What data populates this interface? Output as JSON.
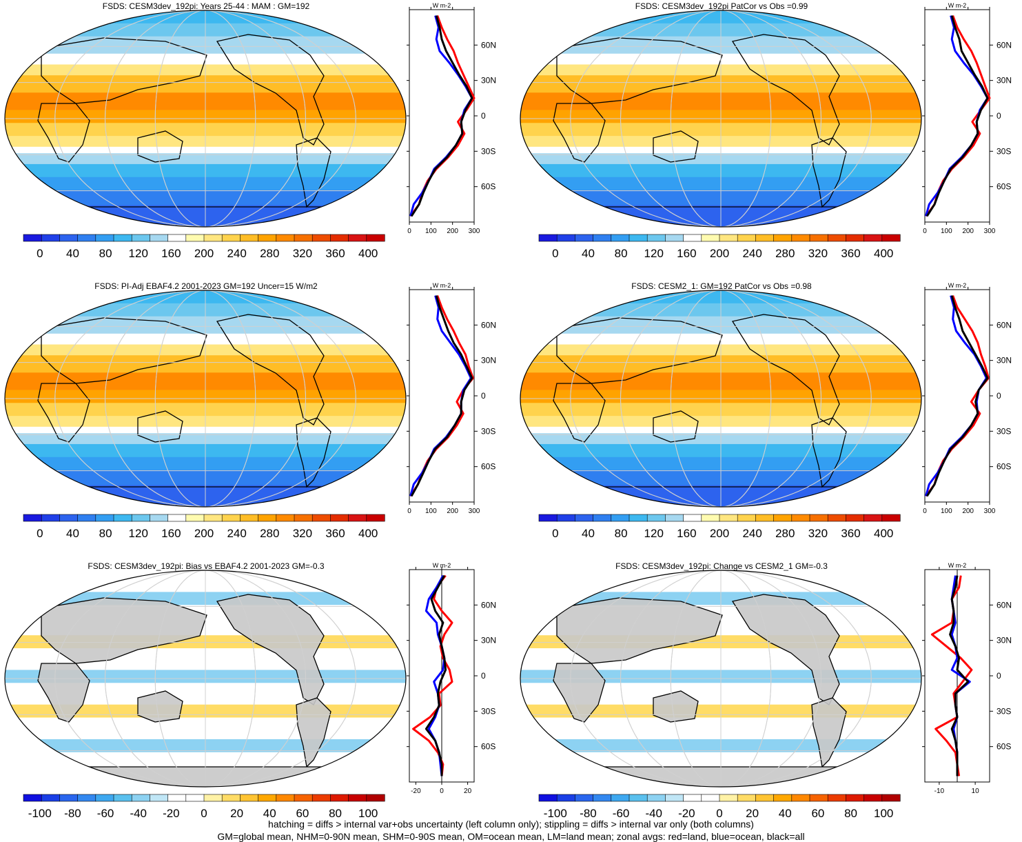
{
  "footer": {
    "line1": "hatching = diffs > internal var+obs uncertainty (left column only); stippling = diffs > internal var only (both columns)",
    "line2": "GM=global mean, NHM=0-90N mean, SHM=0-90S mean, OM=ocean mean, LM=land mean; zonal avgs: red=land, blue=ocean, black=all"
  },
  "colors": {
    "land": "#ff0000",
    "ocean": "#0000ff",
    "all": "#000000",
    "missing_land": "#c8c8c8",
    "abs_palette": [
      "#1a1adf",
      "#2040e8",
      "#2d63ee",
      "#2f7ff0",
      "#339ef2",
      "#3db8f0",
      "#6cc7ee",
      "#a6d8f0",
      "#ffffff",
      "#fffbb0",
      "#ffe680",
      "#ffd34d",
      "#ffbd26",
      "#ffa300",
      "#ff8a00",
      "#f77000",
      "#ee4c00",
      "#e42d00",
      "#d91313",
      "#c90000"
    ],
    "diff_palette": [
      "#1010e0",
      "#1a3fe6",
      "#2a66ee",
      "#3388f0",
      "#3ea8f0",
      "#5ac0ee",
      "#8dd2f2",
      "#c0e6f6",
      "#ffffff",
      "#ffffff",
      "#fff2a6",
      "#ffdc66",
      "#ffc433",
      "#ffa800",
      "#ff8800",
      "#f76300",
      "#ec3c00",
      "#de1a00",
      "#c80000",
      "#b00000"
    ]
  },
  "chart_data": [
    {
      "type": "heatmap",
      "panel": "top-left",
      "title": "FSDS: CESM3dev_192pi: Years 25-44 : MAM : GM=192",
      "colorbar_ticks": [
        "0",
        "40",
        "80",
        "120",
        "160",
        "200",
        "240",
        "280",
        "320",
        "360",
        "400"
      ],
      "colorbar_range": [
        -20,
        420
      ],
      "zonal": {
        "lat_ticks": [
          "60N",
          "30N",
          "0",
          "30S",
          "60S"
        ],
        "x_ticks": [
          "0",
          "100",
          "200",
          "300"
        ],
        "xlim": [
          0,
          300
        ],
        "unit": "W m-2",
        "lat": [
          85,
          75,
          65,
          55,
          45,
          35,
          25,
          15,
          5,
          -5,
          -15,
          -25,
          -35,
          -45,
          -55,
          -65,
          -75,
          -85
        ],
        "all": [
          125,
          140,
          150,
          170,
          200,
          230,
          265,
          290,
          260,
          240,
          245,
          215,
          175,
          120,
          90,
          65,
          45,
          10
        ],
        "land": [
          130,
          150,
          175,
          205,
          225,
          250,
          275,
          300,
          265,
          225,
          255,
          225,
          180,
          125,
          85,
          60,
          45,
          5
        ],
        "ocean": [
          120,
          135,
          125,
          140,
          185,
          225,
          260,
          290,
          255,
          240,
          245,
          215,
          170,
          115,
          90,
          60,
          20,
          5
        ]
      }
    },
    {
      "type": "heatmap",
      "panel": "top-right",
      "title": "FSDS: CESM3dev_192pi PatCor vs Obs =0.99",
      "colorbar_ticks": [
        "0",
        "40",
        "80",
        "120",
        "160",
        "200",
        "240",
        "280",
        "320",
        "360",
        "400"
      ],
      "colorbar_range": [
        -20,
        420
      ],
      "zonal": {
        "lat_ticks": [
          "60N",
          "30N",
          "0",
          "30S",
          "60S"
        ],
        "x_ticks": [
          "0",
          "100",
          "200",
          "300"
        ],
        "xlim": [
          0,
          300
        ],
        "unit": "W m-2",
        "lat": [
          85,
          75,
          65,
          55,
          45,
          35,
          25,
          15,
          5,
          -5,
          -15,
          -25,
          -35,
          -45,
          -55,
          -65,
          -75,
          -85
        ],
        "all": [
          125,
          140,
          160,
          170,
          200,
          230,
          265,
          290,
          260,
          240,
          245,
          215,
          175,
          120,
          90,
          65,
          45,
          10
        ],
        "land": [
          130,
          150,
          180,
          215,
          240,
          260,
          280,
          300,
          260,
          220,
          255,
          225,
          180,
          125,
          85,
          60,
          45,
          5
        ],
        "ocean": [
          120,
          135,
          125,
          140,
          180,
          225,
          260,
          290,
          255,
          240,
          245,
          215,
          170,
          115,
          90,
          60,
          20,
          5
        ]
      }
    },
    {
      "type": "heatmap",
      "panel": "middle-left",
      "title": "FSDS: PI-Adj EBAF4.2 2001-2023 GM=192 Uncer=15 W/m2",
      "colorbar_ticks": [
        "0",
        "40",
        "80",
        "120",
        "160",
        "200",
        "240",
        "280",
        "320",
        "360",
        "400"
      ],
      "colorbar_range": [
        -20,
        420
      ],
      "zonal": {
        "lat_ticks": [
          "60N",
          "30N",
          "0",
          "30S",
          "60S"
        ],
        "x_ticks": [
          "0",
          "100",
          "200",
          "300"
        ],
        "xlim": [
          0,
          300
        ],
        "unit": "W m-2",
        "lat": [
          85,
          75,
          65,
          55,
          45,
          35,
          25,
          15,
          5,
          -5,
          -15,
          -25,
          -35,
          -45,
          -55,
          -65,
          -75,
          -85
        ],
        "all": [
          125,
          140,
          160,
          180,
          205,
          240,
          265,
          290,
          255,
          240,
          240,
          210,
          175,
          120,
          90,
          65,
          40,
          10
        ],
        "land": [
          130,
          150,
          175,
          205,
          230,
          260,
          275,
          295,
          250,
          220,
          250,
          220,
          180,
          125,
          85,
          60,
          40,
          5
        ],
        "ocean": [
          120,
          135,
          130,
          150,
          190,
          230,
          260,
          285,
          250,
          240,
          240,
          210,
          170,
          115,
          90,
          60,
          20,
          5
        ]
      }
    },
    {
      "type": "heatmap",
      "panel": "middle-right",
      "title": "FSDS: CESM2_1: GM=192 PatCor vs Obs =0.98",
      "colorbar_ticks": [
        "0",
        "40",
        "80",
        "120",
        "160",
        "200",
        "240",
        "280",
        "320",
        "360",
        "400"
      ],
      "colorbar_range": [
        -20,
        420
      ],
      "zonal": {
        "lat_ticks": [
          "60N",
          "30N",
          "0",
          "30S",
          "60S"
        ],
        "x_ticks": [
          "0",
          "100",
          "200",
          "300"
        ],
        "xlim": [
          0,
          300
        ],
        "unit": "W m-2",
        "lat": [
          85,
          75,
          65,
          55,
          45,
          35,
          25,
          15,
          5,
          -5,
          -15,
          -25,
          -35,
          -45,
          -55,
          -65,
          -75,
          -85
        ],
        "all": [
          125,
          140,
          160,
          175,
          205,
          235,
          265,
          290,
          250,
          235,
          245,
          215,
          175,
          120,
          90,
          65,
          45,
          10
        ],
        "land": [
          130,
          150,
          185,
          220,
          245,
          260,
          280,
          295,
          250,
          215,
          255,
          225,
          180,
          125,
          85,
          60,
          45,
          5
        ],
        "ocean": [
          120,
          135,
          130,
          145,
          185,
          230,
          260,
          285,
          250,
          240,
          245,
          215,
          170,
          115,
          90,
          60,
          20,
          5
        ]
      }
    },
    {
      "type": "heatmap",
      "panel": "bottom-left",
      "title": "FSDS: CESM3dev_192pi: Bias vs EBAF4.2 2001-2023 GM=-0.3",
      "colorbar_ticks": [
        "-100",
        "-80",
        "-60",
        "-40",
        "-20",
        "0",
        "20",
        "40",
        "60",
        "80",
        "100"
      ],
      "colorbar_range": [
        -110,
        110
      ],
      "zonal": {
        "lat_ticks": [
          "60N",
          "30N",
          "0",
          "30S",
          "60S"
        ],
        "x_ticks": [
          "-20",
          "0",
          "20"
        ],
        "xlim": [
          -25,
          25
        ],
        "unit": "W m-2",
        "lat": [
          85,
          75,
          65,
          55,
          45,
          35,
          25,
          15,
          5,
          -5,
          -15,
          -25,
          -35,
          -45,
          -55,
          -65,
          -75,
          -85
        ],
        "all": [
          2,
          -3,
          -8,
          -5,
          1,
          -2,
          0,
          2,
          3,
          -1,
          -3,
          -2,
          -6,
          -12,
          -5,
          -2,
          0,
          0
        ],
        "land": [
          3,
          -4,
          -6,
          0,
          8,
          2,
          -1,
          1,
          6,
          8,
          -2,
          -1,
          -9,
          -22,
          -10,
          -3,
          1,
          0
        ],
        "ocean": [
          1,
          -4,
          -10,
          -12,
          -4,
          -3,
          0,
          2,
          1,
          -6,
          -3,
          -2,
          -5,
          -10,
          -5,
          -2,
          -1,
          0
        ]
      }
    },
    {
      "type": "heatmap",
      "panel": "bottom-right",
      "title": "FSDS: CESM3dev_192pi: Change vs CESM2_1 GM=-0.3",
      "colorbar_ticks": [
        "-100",
        "-80",
        "-60",
        "-40",
        "-20",
        "0",
        "20",
        "40",
        "60",
        "80",
        "100"
      ],
      "colorbar_range": [
        -110,
        110
      ],
      "zonal": {
        "lat_ticks": [
          "60N",
          "30N",
          "0",
          "30S",
          "60S"
        ],
        "x_ticks": [
          "-10",
          "10"
        ],
        "xlim": [
          -18,
          18
        ],
        "unit": "W m-2",
        "lat": [
          85,
          75,
          65,
          55,
          45,
          35,
          25,
          15,
          5,
          -5,
          -15,
          -25,
          -35,
          -45,
          -55,
          -65,
          -75,
          -85
        ],
        "all": [
          0,
          -1,
          -3,
          -2,
          -2,
          -4,
          -1,
          1,
          0,
          6,
          -1,
          -1,
          0,
          -3,
          -1,
          0,
          0,
          0
        ],
        "land": [
          2,
          1,
          -3,
          -2,
          -3,
          -14,
          -6,
          2,
          8,
          3,
          -2,
          -1,
          0,
          -12,
          -6,
          -1,
          0,
          1
        ],
        "ocean": [
          -1,
          -2,
          -3,
          -2,
          -1,
          -3,
          -1,
          0,
          -3,
          7,
          -1,
          -1,
          0,
          -2,
          -1,
          0,
          0,
          0
        ]
      }
    }
  ]
}
